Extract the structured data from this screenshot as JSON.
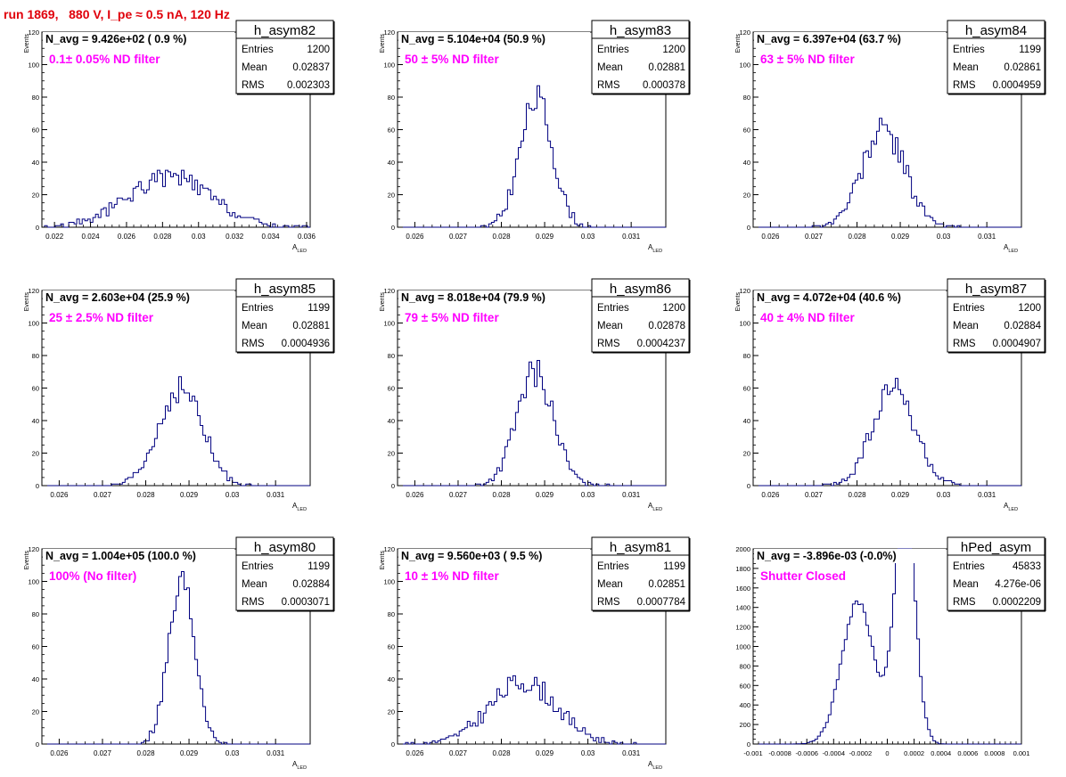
{
  "page": {
    "title": "run 1869,   880 V, I_pe ≈ 0.5 nA, 120 Hz"
  },
  "colors": {
    "title": "#e0000b",
    "annotation": "#ff00ff",
    "histogram": "#000080",
    "text": "#000000"
  },
  "chart_data": [
    {
      "type": "histogram",
      "hist_name": "h_asym82",
      "navg": "N_avg = 9.426e+02 ( 0.9 %)",
      "note": "0.1± 0.05% ND filter",
      "stats": {
        "Entries": "1200",
        "Mean": "0.02837",
        "RMS": "0.002303"
      },
      "xlabel": "A",
      "xlabel_sub": "LED",
      "ylabel": "Events",
      "xlim": [
        0.0213,
        0.0362
      ],
      "ylim": [
        0,
        120
      ],
      "xticks": [
        "0.022",
        "0.024",
        "0.026",
        "0.028",
        "0.03",
        "0.032",
        "0.034",
        "0.036"
      ],
      "xtick_values": [
        0.022,
        0.024,
        0.026,
        0.028,
        0.03,
        0.032,
        0.034,
        0.036
      ],
      "yticks": [
        "0",
        "20",
        "40",
        "60",
        "80",
        "100",
        "120"
      ],
      "ytick_values": [
        0,
        20,
        40,
        60,
        80,
        100,
        120
      ],
      "mean": 0.02837,
      "rms": 0.002303,
      "entries": 1200,
      "seed": 82,
      "bins": 100,
      "shape": "broad"
    },
    {
      "type": "histogram",
      "hist_name": "h_asym83",
      "navg": "N_avg = 5.104e+04 (50.9 %)",
      "note": "50 ± 5% ND filter",
      "stats": {
        "Entries": "1200",
        "Mean": "0.02881",
        "RMS": "0.000378"
      },
      "xlabel": "A",
      "xlabel_sub": "LED",
      "ylabel": "Events",
      "xlim": [
        0.0256,
        0.0318
      ],
      "ylim": [
        0,
        120
      ],
      "xticks": [
        "0.026",
        "0.027",
        "0.028",
        "0.029",
        "0.03",
        "0.031"
      ],
      "xtick_values": [
        0.026,
        0.027,
        0.028,
        0.029,
        0.03,
        0.031
      ],
      "yticks": [
        "0",
        "20",
        "40",
        "60",
        "80",
        "100",
        "120"
      ],
      "ytick_values": [
        0,
        20,
        40,
        60,
        80,
        100,
        120
      ],
      "mean": 0.02881,
      "rms": 0.000378,
      "entries": 1200,
      "seed": 83,
      "bins": 100,
      "shape": "gauss"
    },
    {
      "type": "histogram",
      "hist_name": "h_asym84",
      "navg": "N_avg = 6.397e+04 (63.7 %)",
      "note": "63 ± 5% ND filter",
      "stats": {
        "Entries": "1199",
        "Mean": "0.02861",
        "RMS": "0.0004959"
      },
      "xlabel": "A",
      "xlabel_sub": "LED",
      "ylabel": "Events",
      "xlim": [
        0.0256,
        0.0318
      ],
      "ylim": [
        0,
        120
      ],
      "xticks": [
        "0.026",
        "0.027",
        "0.028",
        "0.029",
        "0.03",
        "0.031"
      ],
      "xtick_values": [
        0.026,
        0.027,
        0.028,
        0.029,
        0.03,
        0.031
      ],
      "yticks": [
        "0",
        "20",
        "40",
        "60",
        "80",
        "100",
        "120"
      ],
      "ytick_values": [
        0,
        20,
        40,
        60,
        80,
        100,
        120
      ],
      "mean": 0.02861,
      "rms": 0.0004959,
      "entries": 1199,
      "seed": 84,
      "bins": 100,
      "shape": "gauss"
    },
    {
      "type": "histogram",
      "hist_name": "h_asym85",
      "navg": "N_avg = 2.603e+04 (25.9 %)",
      "note": "25 ± 2.5% ND filter",
      "stats": {
        "Entries": "1199",
        "Mean": "0.02881",
        "RMS": "0.0004936"
      },
      "xlabel": "A",
      "xlabel_sub": "LED",
      "ylabel": "Events",
      "xlim": [
        0.0256,
        0.0318
      ],
      "ylim": [
        0,
        120
      ],
      "xticks": [
        "0.026",
        "0.027",
        "0.028",
        "0.029",
        "0.03",
        "0.031"
      ],
      "xtick_values": [
        0.026,
        0.027,
        0.028,
        0.029,
        0.03,
        0.031
      ],
      "yticks": [
        "0",
        "20",
        "40",
        "60",
        "80",
        "100",
        "120"
      ],
      "ytick_values": [
        0,
        20,
        40,
        60,
        80,
        100,
        120
      ],
      "mean": 0.02881,
      "rms": 0.0004936,
      "entries": 1199,
      "seed": 85,
      "bins": 100,
      "shape": "gauss"
    },
    {
      "type": "histogram",
      "hist_name": "h_asym86",
      "navg": "N_avg = 8.018e+04 (79.9 %)",
      "note": "79 ± 5% ND filter",
      "stats": {
        "Entries": "1200",
        "Mean": "0.02878",
        "RMS": "0.0004237"
      },
      "xlabel": "A",
      "xlabel_sub": "LED",
      "ylabel": "Events",
      "xlim": [
        0.0256,
        0.0318
      ],
      "ylim": [
        0,
        120
      ],
      "xticks": [
        "0.026",
        "0.027",
        "0.028",
        "0.029",
        "0.03",
        "0.031"
      ],
      "xtick_values": [
        0.026,
        0.027,
        0.028,
        0.029,
        0.03,
        0.031
      ],
      "yticks": [
        "0",
        "20",
        "40",
        "60",
        "80",
        "100",
        "120"
      ],
      "ytick_values": [
        0,
        20,
        40,
        60,
        80,
        100,
        120
      ],
      "mean": 0.02878,
      "rms": 0.0004237,
      "entries": 1200,
      "seed": 86,
      "bins": 100,
      "shape": "gauss"
    },
    {
      "type": "histogram",
      "hist_name": "h_asym87",
      "navg": "N_avg = 4.072e+04 (40.6 %)",
      "note": "40 ± 4% ND filter",
      "stats": {
        "Entries": "1200",
        "Mean": "0.02884",
        "RMS": "0.0004907"
      },
      "xlabel": "A",
      "xlabel_sub": "LED",
      "ylabel": "Events",
      "xlim": [
        0.0256,
        0.0318
      ],
      "ylim": [
        0,
        120
      ],
      "xticks": [
        "0.026",
        "0.027",
        "0.028",
        "0.029",
        "0.03",
        "0.031"
      ],
      "xtick_values": [
        0.026,
        0.027,
        0.028,
        0.029,
        0.03,
        0.031
      ],
      "yticks": [
        "0",
        "20",
        "40",
        "60",
        "80",
        "100",
        "120"
      ],
      "ytick_values": [
        0,
        20,
        40,
        60,
        80,
        100,
        120
      ],
      "mean": 0.02884,
      "rms": 0.0004907,
      "entries": 1200,
      "seed": 87,
      "bins": 100,
      "shape": "gauss"
    },
    {
      "type": "histogram",
      "hist_name": "h_asym80",
      "navg": "N_avg = 1.004e+05 (100.0 %)",
      "note": "100% (No filter)",
      "stats": {
        "Entries": "1199",
        "Mean": "0.02884",
        "RMS": "0.0003071"
      },
      "xlabel": "A",
      "xlabel_sub": "LED",
      "ylabel": "Events",
      "xlim": [
        0.0256,
        0.0318
      ],
      "ylim": [
        0,
        120
      ],
      "xticks": [
        "0.026",
        "0.027",
        "0.028",
        "0.029",
        "0.03",
        "0.031"
      ],
      "xtick_values": [
        0.026,
        0.027,
        0.028,
        0.029,
        0.03,
        0.031
      ],
      "yticks": [
        "0",
        "20",
        "40",
        "60",
        "80",
        "100",
        "120"
      ],
      "ytick_values": [
        0,
        20,
        40,
        60,
        80,
        100,
        120
      ],
      "mean": 0.02884,
      "rms": 0.0003071,
      "entries": 1199,
      "seed": 80,
      "bins": 100,
      "shape": "gauss"
    },
    {
      "type": "histogram",
      "hist_name": "h_asym81",
      "navg": "N_avg = 9.560e+03 ( 9.5 %)",
      "note": "10 ± 1% ND filter",
      "stats": {
        "Entries": "1199",
        "Mean": "0.02851",
        "RMS": "0.0007784"
      },
      "xlabel": "A",
      "xlabel_sub": "LED",
      "ylabel": "Events",
      "xlim": [
        0.0256,
        0.0318
      ],
      "ylim": [
        0,
        120
      ],
      "xticks": [
        "0.026",
        "0.027",
        "0.028",
        "0.029",
        "0.03",
        "0.031"
      ],
      "xtick_values": [
        0.026,
        0.027,
        0.028,
        0.029,
        0.03,
        0.031
      ],
      "yticks": [
        "0",
        "20",
        "40",
        "60",
        "80",
        "100",
        "120"
      ],
      "ytick_values": [
        0,
        20,
        40,
        60,
        80,
        100,
        120
      ],
      "mean": 0.02851,
      "rms": 0.0007784,
      "entries": 1199,
      "seed": 81,
      "bins": 100,
      "shape": "gauss"
    },
    {
      "type": "histogram",
      "hist_name": "hPed_asym",
      "navg": "N_avg = -3.896e-03 (-0.0%)",
      "note": "Shutter Closed",
      "stats": {
        "Entries": "45833",
        "Mean": "4.276e-06",
        "RMS": "0.0002209"
      },
      "xlabel": "",
      "xlabel_sub": "",
      "ylabel": "",
      "xlim": [
        -0.001,
        0.001
      ],
      "ylim": [
        0,
        2000
      ],
      "xticks": [
        "-0.001",
        "-0.0008",
        "-0.0006",
        "-0.0004",
        "-0.0002",
        "0",
        "0.0002",
        "0.0004",
        "0.0006",
        "0.0008",
        "0.001"
      ],
      "xtick_values": [
        -0.001,
        -0.0008,
        -0.0006,
        -0.0004,
        -0.0002,
        0,
        0.0002,
        0.0004,
        0.0006,
        0.0008,
        0.001
      ],
      "yticks": [
        "0",
        "200",
        "400",
        "600",
        "800",
        "1000",
        "1200",
        "1400",
        "1600",
        "1800",
        "2000"
      ],
      "ytick_values": [
        0,
        200,
        400,
        600,
        800,
        1000,
        1200,
        1400,
        1600,
        1800,
        2000
      ],
      "mean": 4.276e-06,
      "rms": 0.0002209,
      "entries": 45833,
      "seed": 99,
      "bins": 100,
      "shape": "pedestal"
    }
  ]
}
